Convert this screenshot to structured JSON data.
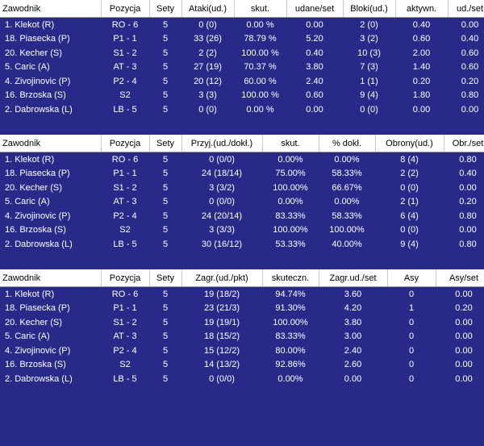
{
  "tables": [
    {
      "header": [
        "Zawodnik",
        "Pozycja",
        "Sety",
        "Ataki(ud.)",
        "skut.",
        "udane/set",
        "Bloki(ud.)",
        "aktywn.",
        "ud./set"
      ],
      "rows": [
        [
          "1. Klekot (R)",
          "RO - 6",
          "5",
          "0 (0)",
          "0.00 %",
          "0.00",
          "2 (0)",
          "0.40",
          "0.00"
        ],
        [
          "18. Piasecka (P)",
          "P1 - 1",
          "5",
          "33 (26)",
          "78.79 %",
          "5.20",
          "3 (2)",
          "0.60",
          "0.40"
        ],
        [
          "20. Kecher (S)",
          "S1 - 2",
          "5",
          "2 (2)",
          "100.00 %",
          "0.40",
          "10 (3)",
          "2.00",
          "0.60"
        ],
        [
          "5. Caric (A)",
          "AT - 3",
          "5",
          "27 (19)",
          "70.37 %",
          "3.80",
          "7 (3)",
          "1.40",
          "0.60"
        ],
        [
          "4. Zivojinovic (P)",
          "P2 - 4",
          "5",
          "20 (12)",
          "60.00 %",
          "2.40",
          "1 (1)",
          "0.20",
          "0.20"
        ],
        [
          "16. Brzoska (S)",
          "S2",
          "5",
          "3 (3)",
          "100.00 %",
          "0.60",
          "9 (4)",
          "1.80",
          "0.80"
        ],
        [
          "2. Dabrowska (L)",
          "LB - 5",
          "5",
          "0 (0)",
          "0.00 %",
          "0.00",
          "0 (0)",
          "0.00",
          "0.00"
        ]
      ]
    },
    {
      "header": [
        "Zawodnik",
        "Pozycja",
        "Sety",
        "Przyj.(ud./dokł.)",
        "skut.",
        "% dokł.",
        "Obrony(ud.)",
        "Obr./set"
      ],
      "rows": [
        [
          "1. Klekot (R)",
          "RO - 6",
          "5",
          "0 (0/0)",
          "0.00%",
          "0.00%",
          "8 (4)",
          "0.80"
        ],
        [
          "18. Piasecka (P)",
          "P1 - 1",
          "5",
          "24 (18/14)",
          "75.00%",
          "58.33%",
          "2 (2)",
          "0.40"
        ],
        [
          "20. Kecher (S)",
          "S1 - 2",
          "5",
          "3 (3/2)",
          "100.00%",
          "66.67%",
          "0 (0)",
          "0.00"
        ],
        [
          "5. Caric (A)",
          "AT - 3",
          "5",
          "0 (0/0)",
          "0.00%",
          "0.00%",
          "2 (1)",
          "0.20"
        ],
        [
          "4. Zivojinovic (P)",
          "P2 - 4",
          "5",
          "24 (20/14)",
          "83.33%",
          "58.33%",
          "6 (4)",
          "0.80"
        ],
        [
          "16. Brzoska (S)",
          "S2",
          "5",
          "3 (3/3)",
          "100.00%",
          "100.00%",
          "0 (0)",
          "0.00"
        ],
        [
          "2. Dabrowska (L)",
          "LB - 5",
          "5",
          "30 (16/12)",
          "53.33%",
          "40.00%",
          "9 (4)",
          "0.80"
        ]
      ]
    },
    {
      "header": [
        "Zawodnik",
        "Pozycja",
        "Sety",
        "Zagr.(ud./pkt)",
        "skuteczn.",
        "Zagr.ud./set",
        "Asy",
        "Asy/set"
      ],
      "rows": [
        [
          "1. Klekot (R)",
          "RO - 6",
          "5",
          "19 (18/2)",
          "94.74%",
          "3.60",
          "0",
          "0.00"
        ],
        [
          "18. Piasecka (P)",
          "P1 - 1",
          "5",
          "23 (21/3)",
          "91.30%",
          "4.20",
          "1",
          "0.20"
        ],
        [
          "20. Kecher (S)",
          "S1 - 2",
          "5",
          "19 (19/1)",
          "100.00%",
          "3.80",
          "0",
          "0.00"
        ],
        [
          "5. Caric (A)",
          "AT - 3",
          "5",
          "18 (15/2)",
          "83.33%",
          "3.00",
          "0",
          "0.00"
        ],
        [
          "4. Zivojinovic (P)",
          "P2 - 4",
          "5",
          "15 (12/2)",
          "80.00%",
          "2.40",
          "0",
          "0.00"
        ],
        [
          "16. Brzoska (S)",
          "S2",
          "5",
          "14 (13/2)",
          "92.86%",
          "2.60",
          "0",
          "0.00"
        ],
        [
          "2. Dabrowska (L)",
          "LB - 5",
          "5",
          "0 (0/0)",
          "0.00%",
          "0.00",
          "0",
          "0.00"
        ]
      ]
    }
  ]
}
